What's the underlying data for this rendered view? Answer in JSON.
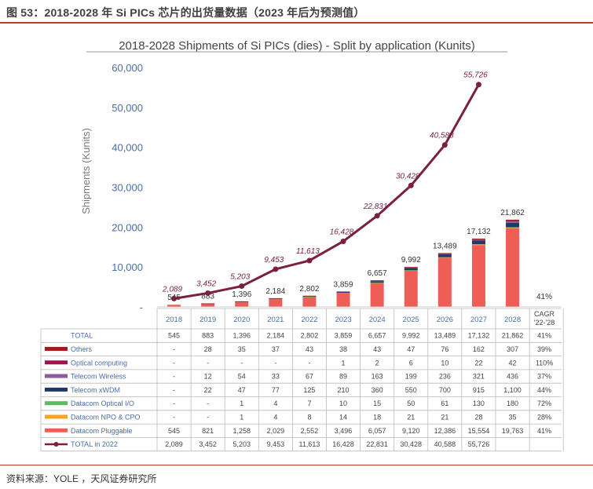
{
  "caption": "图 53：2018-2028 年 Si PICs 芯片的出货量数据（2023 年后为预测值）",
  "source": "资料来源：YOLE ，天风证券研究所",
  "chart_data": {
    "type": "bar",
    "title": "2018-2028 Shipments of Si PICs (dies) - Split by application (Kunits)",
    "ylabel": "Shipments (Kunits)",
    "ylim": [
      0,
      60000
    ],
    "yticks": [
      "60,000",
      "50,000",
      "40,000",
      "30,000",
      "20,000",
      "10,000",
      "-"
    ],
    "categories": [
      "2018",
      "2019",
      "2020",
      "2021",
      "2022",
      "2023",
      "2024",
      "2025",
      "2026",
      "2027",
      "2028"
    ],
    "cagr_header": [
      "CAGR",
      "'22-'28"
    ],
    "cagr_total_label": "41%",
    "series": [
      {
        "name": "Datacom Pluggable",
        "color": "#ee5e56",
        "values": [
          545,
          821,
          1258,
          2029,
          2552,
          3496,
          6057,
          9120,
          12386,
          15554,
          19763
        ],
        "cagr": "41%"
      },
      {
        "name": "Datacom NPO & CPO",
        "color": "#f7a52a",
        "values": [
          0,
          0,
          1,
          4,
          8,
          14,
          18,
          21,
          21,
          28,
          35
        ],
        "labels": [
          "-",
          "-",
          "1",
          "4",
          "8",
          "14",
          "18",
          "21",
          "21",
          "28",
          "35"
        ],
        "cagr": "28%"
      },
      {
        "name": "Datacom Optical I/O",
        "color": "#5dbb63",
        "values": [
          0,
          0,
          1,
          4,
          7,
          10,
          15,
          50,
          61,
          130,
          180
        ],
        "labels": [
          "-",
          "-",
          "1",
          "4",
          "7",
          "10",
          "15",
          "50",
          "61",
          "130",
          "180"
        ],
        "cagr": "72%"
      },
      {
        "name": "Telecom xWDM",
        "color": "#1f3864",
        "values": [
          0,
          22,
          47,
          77,
          125,
          210,
          360,
          550,
          700,
          915,
          1100
        ],
        "labels": [
          "-",
          "22",
          "47",
          "77",
          "125",
          "210",
          "360",
          "550",
          "700",
          "915",
          "1,100"
        ],
        "cagr": "44%"
      },
      {
        "name": "Telecom Wireless",
        "color": "#8e5aa0",
        "values": [
          0,
          12,
          54,
          33,
          67,
          89,
          163,
          199,
          236,
          321,
          436
        ],
        "labels": [
          "-",
          "12",
          "54",
          "33",
          "67",
          "89",
          "163",
          "199",
          "236",
          "321",
          "436"
        ],
        "cagr": "37%"
      },
      {
        "name": "Optical computing",
        "color": "#a0124f",
        "values": [
          0,
          0,
          0,
          0,
          0,
          1,
          2,
          6,
          10,
          22,
          42
        ],
        "labels": [
          "-",
          "-",
          "-",
          "-",
          "-",
          "1",
          "2",
          "6",
          "10",
          "22",
          "42"
        ],
        "cagr": "110%"
      },
      {
        "name": "Others",
        "color": "#a31c1c",
        "values": [
          0,
          28,
          35,
          37,
          43,
          38,
          43,
          47,
          76,
          162,
          307
        ],
        "labels": [
          "-",
          "28",
          "35",
          "37",
          "43",
          "38",
          "43",
          "47",
          "76",
          "162",
          "307"
        ],
        "cagr": "39%"
      }
    ],
    "series_pluggable_labels": [
      "545",
      "821",
      "1,258",
      "2,029",
      "2,552",
      "3,496",
      "6,057",
      "9,120",
      "12,386",
      "15,554",
      "19,763"
    ],
    "total": {
      "name": "TOTAL",
      "labels": [
        "545",
        "883",
        "1,396",
        "2,184",
        "2,802",
        "3,859",
        "6,657",
        "9,992",
        "13,489",
        "17,132",
        "21,862"
      ],
      "cagr": "41%"
    },
    "line": {
      "name": "TOTAL in 2022",
      "color": "#7b1f3e",
      "values": [
        2089,
        3452,
        5203,
        9453,
        11613,
        16428,
        22831,
        30428,
        40588,
        55726
      ],
      "labels": [
        "2,089",
        "3,452",
        "5,203",
        "9,453",
        "11,613",
        "16,428",
        "22,831",
        "30,428",
        "40,588",
        "55,726"
      ]
    },
    "grid": false,
    "legend": "table-below"
  }
}
